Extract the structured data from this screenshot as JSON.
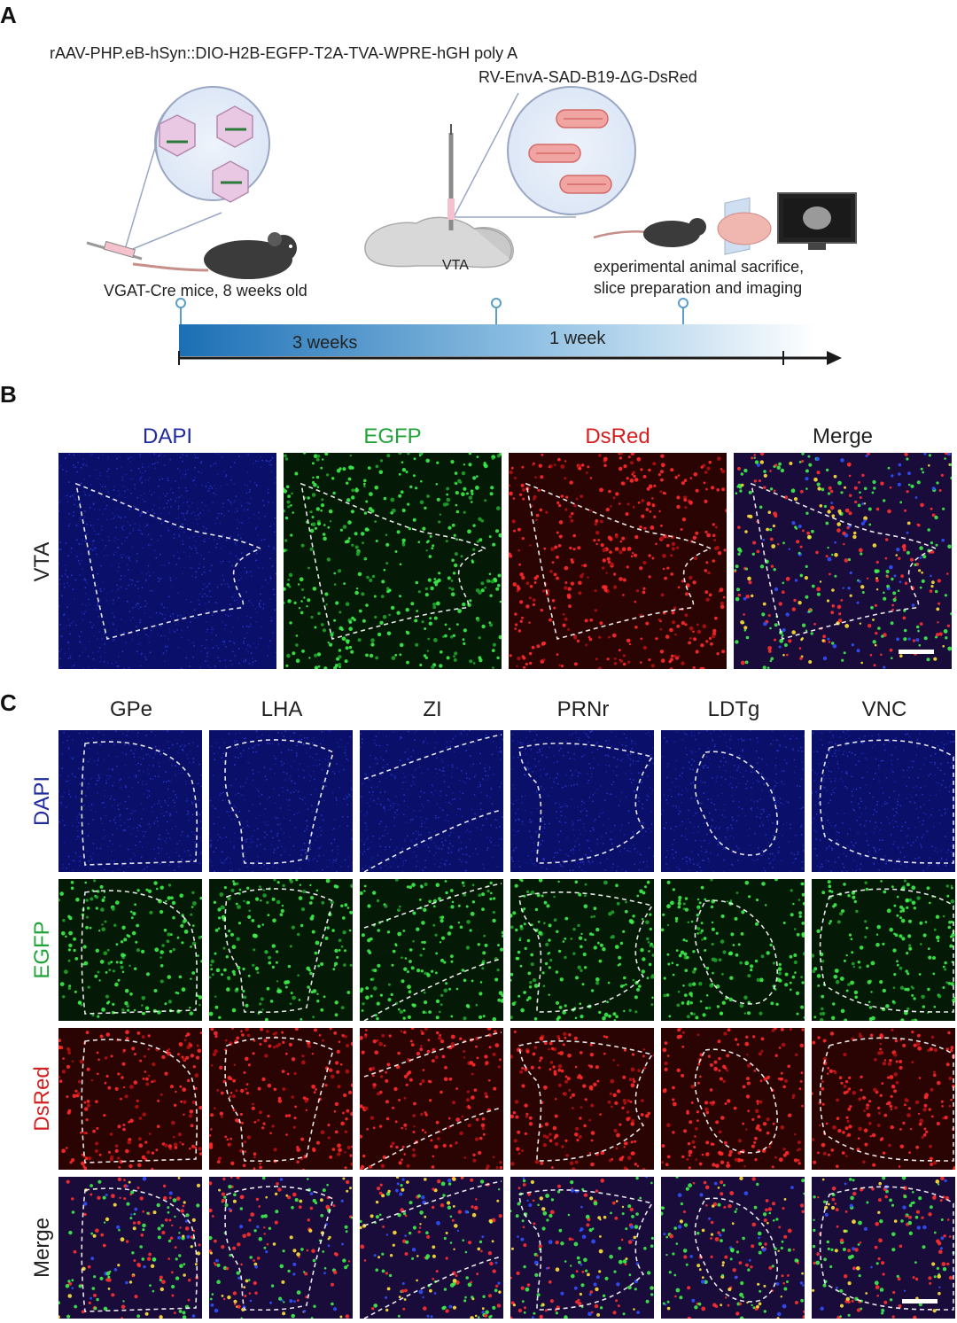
{
  "panels": {
    "a": {
      "letter": "A"
    },
    "b": {
      "letter": "B"
    },
    "c": {
      "letter": "C"
    }
  },
  "schematic": {
    "aav_label": "rAAV-PHP.eB-hSyn::DIO-H2B-EGFP-T2A-TVA-WPRE-hGH poly A",
    "rv_label": "RV-EnvA-SAD-B19-ΔG-DsRed",
    "mice_label": "VGAT-Cre mice, 8 weeks old",
    "vta_label": "VTA",
    "sacrifice_line1": "experimental animal sacrifice,",
    "sacrifice_line2": "slice preparation and imaging",
    "period1": "3 weeks",
    "period2": "1 week",
    "colors": {
      "timeline_start": "#1b6fb5",
      "timeline_end": "#ffffff",
      "marker": "#5a9ec9"
    }
  },
  "panel_b": {
    "row_label": "VTA",
    "columns": [
      {
        "label": "DAPI",
        "color": "#1f2a9c"
      },
      {
        "label": "EGFP",
        "color": "#22a33a"
      },
      {
        "label": "DsRed",
        "color": "#d42020"
      },
      {
        "label": "Merge",
        "color": "#222222"
      }
    ]
  },
  "panel_c": {
    "regions": [
      "GPe",
      "LHA",
      "ZI",
      "PRNr",
      "LDTg",
      "VNC"
    ],
    "rows": [
      {
        "label": "DAPI",
        "color": "#1f2a9c"
      },
      {
        "label": "EGFP",
        "color": "#22a33a"
      },
      {
        "label": "DsRed",
        "color": "#d42020"
      },
      {
        "label": "Merge",
        "color": "#222222"
      }
    ]
  },
  "icons": [
    "mouse-icon",
    "syringe-icon",
    "aav-capsid-icon",
    "rabies-virus-icon",
    "brain-sagittal-icon",
    "monitor-icon",
    "scale-bar-icon"
  ]
}
